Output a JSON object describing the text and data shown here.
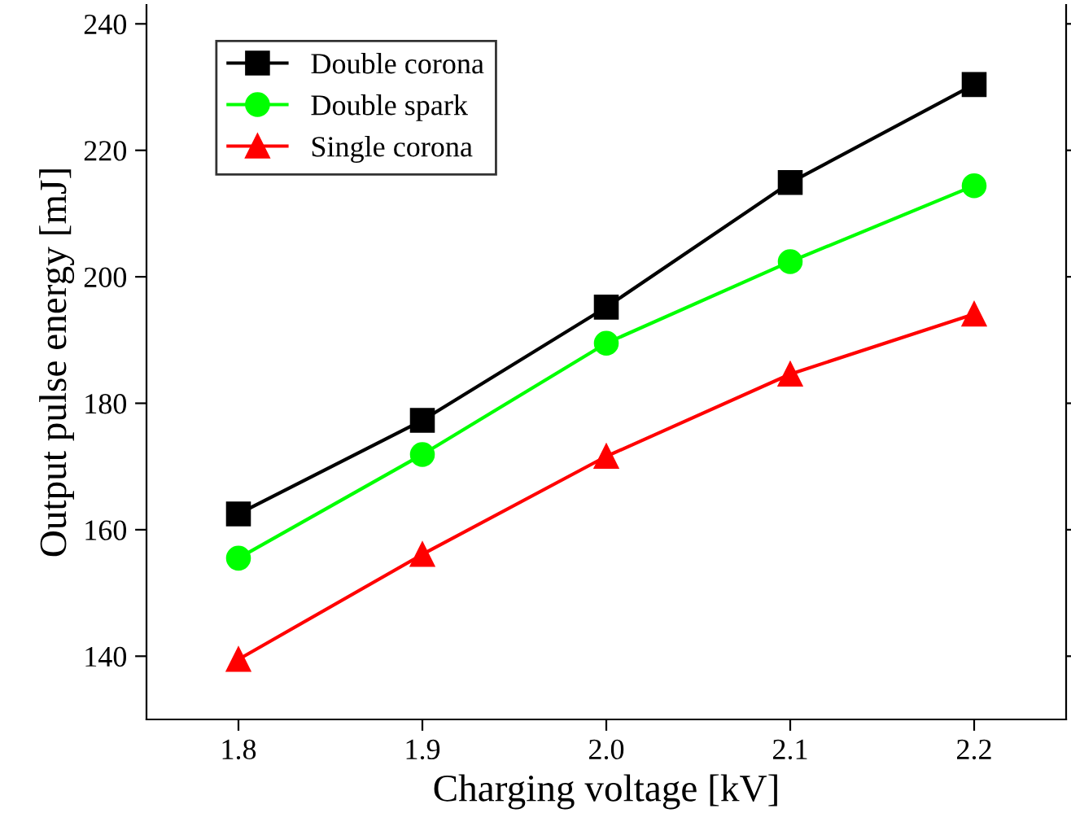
{
  "chart_data": {
    "type": "line",
    "xlabel": "Charging voltage [kV]",
    "ylabel": "Output pulse energy [mJ]",
    "x": [
      1.8,
      1.9,
      2.0,
      2.1,
      2.2
    ],
    "series": [
      {
        "name": "Double corona",
        "color": "#000000",
        "marker": "square",
        "values": [
          162.5,
          177.3,
          195.2,
          214.9,
          230.4
        ]
      },
      {
        "name": "Double spark",
        "color": "#00ff00",
        "marker": "circle",
        "values": [
          155.5,
          171.9,
          189.5,
          202.4,
          214.4
        ]
      },
      {
        "name": "Single corona",
        "color": "#ff0000",
        "marker": "triangle",
        "values": [
          139.5,
          156.1,
          171.6,
          184.6,
          194.1
        ]
      }
    ],
    "xlim": [
      1.75,
      2.25
    ],
    "xticks": [
      {
        "value": 1.8,
        "label": "1.8"
      },
      {
        "value": 1.9,
        "label": "1.9"
      },
      {
        "value": 2.0,
        "label": "2.0"
      },
      {
        "value": 2.1,
        "label": "2.1"
      },
      {
        "value": 2.2,
        "label": "2.2"
      }
    ],
    "ylim": [
      130,
      243
    ],
    "yticks": [
      140,
      160,
      180,
      200,
      220,
      240
    ],
    "grid": false,
    "legend": "top left",
    "line_style": "solid"
  }
}
